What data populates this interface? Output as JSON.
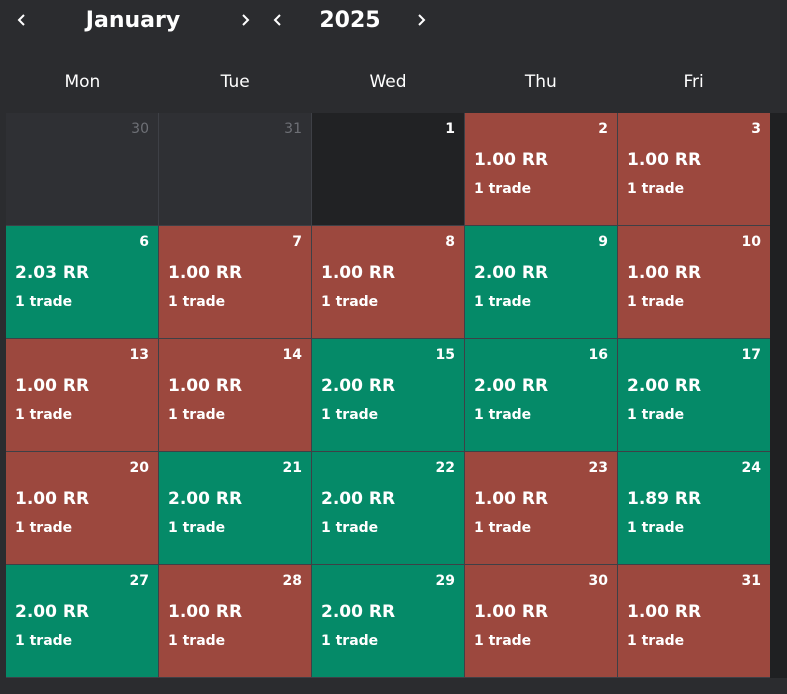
{
  "header": {
    "month_label": "January",
    "year_label": "2025",
    "prev_month_icon": "chevron-left-icon",
    "next_month_icon": "chevron-right-icon",
    "prev_year_icon": "chevron-left-icon",
    "next_year_icon": "chevron-right-icon"
  },
  "weekdays": [
    "Mon",
    "Tue",
    "Wed",
    "Thu",
    "Fri"
  ],
  "colors": {
    "win": "#058a68",
    "loss": "#9c483e",
    "outside_month": "#2f3034",
    "no_trades": "#212224",
    "background": "#2b2c2f"
  },
  "weeks": [
    [
      {
        "day": "30",
        "status": "outside",
        "rr": "",
        "trades": ""
      },
      {
        "day": "31",
        "status": "outside",
        "rr": "",
        "trades": ""
      },
      {
        "day": "1",
        "status": "empty",
        "rr": "",
        "trades": ""
      },
      {
        "day": "2",
        "status": "loss",
        "rr": "1.00 RR",
        "trades": "1 trade"
      },
      {
        "day": "3",
        "status": "loss",
        "rr": "1.00 RR",
        "trades": "1 trade"
      }
    ],
    [
      {
        "day": "6",
        "status": "win",
        "rr": "2.03 RR",
        "trades": "1 trade"
      },
      {
        "day": "7",
        "status": "loss",
        "rr": "1.00 RR",
        "trades": "1 trade"
      },
      {
        "day": "8",
        "status": "loss",
        "rr": "1.00 RR",
        "trades": "1 trade"
      },
      {
        "day": "9",
        "status": "win",
        "rr": "2.00 RR",
        "trades": "1 trade"
      },
      {
        "day": "10",
        "status": "loss",
        "rr": "1.00 RR",
        "trades": "1 trade"
      }
    ],
    [
      {
        "day": "13",
        "status": "loss",
        "rr": "1.00 RR",
        "trades": "1 trade"
      },
      {
        "day": "14",
        "status": "loss",
        "rr": "1.00 RR",
        "trades": "1 trade"
      },
      {
        "day": "15",
        "status": "win",
        "rr": "2.00 RR",
        "trades": "1 trade"
      },
      {
        "day": "16",
        "status": "win",
        "rr": "2.00 RR",
        "trades": "1 trade"
      },
      {
        "day": "17",
        "status": "win",
        "rr": "2.00 RR",
        "trades": "1 trade"
      }
    ],
    [
      {
        "day": "20",
        "status": "loss",
        "rr": "1.00 RR",
        "trades": "1 trade"
      },
      {
        "day": "21",
        "status": "win",
        "rr": "2.00 RR",
        "trades": "1 trade"
      },
      {
        "day": "22",
        "status": "win",
        "rr": "2.00 RR",
        "trades": "1 trade"
      },
      {
        "day": "23",
        "status": "loss",
        "rr": "1.00 RR",
        "trades": "1 trade"
      },
      {
        "day": "24",
        "status": "win",
        "rr": "1.89 RR",
        "trades": "1 trade"
      }
    ],
    [
      {
        "day": "27",
        "status": "win",
        "rr": "2.00 RR",
        "trades": "1 trade"
      },
      {
        "day": "28",
        "status": "loss",
        "rr": "1.00 RR",
        "trades": "1 trade"
      },
      {
        "day": "29",
        "status": "win",
        "rr": "2.00 RR",
        "trades": "1 trade"
      },
      {
        "day": "30",
        "status": "loss",
        "rr": "1.00 RR",
        "trades": "1 trade"
      },
      {
        "day": "31",
        "status": "loss",
        "rr": "1.00 RR",
        "trades": "1 trade"
      }
    ]
  ]
}
